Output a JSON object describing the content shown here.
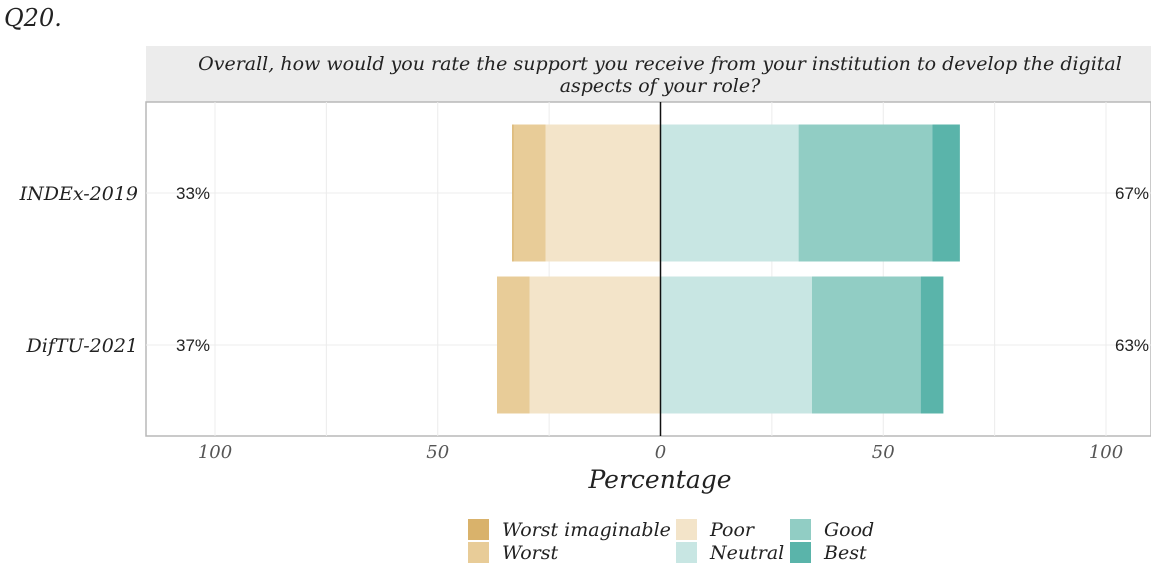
{
  "question_number": "Q20.",
  "chart_data": {
    "type": "bar",
    "orientation": "horizontal-diverging",
    "title_lines": [
      "Overall, how would you rate the support you receive from your institution to develop the digital",
      "aspects of your role?"
    ],
    "xlabel": "Percentage",
    "ylabel": "",
    "xlim": [
      -115,
      115
    ],
    "x_ticks": [
      -100,
      -50,
      0,
      50,
      100
    ],
    "x_tick_labels": [
      "100",
      "50",
      "0",
      "50",
      "100"
    ],
    "grid": true,
    "legend_position": "bottom",
    "categories": [
      "INDEx-2019",
      "DifTU-2021"
    ],
    "left_totals": [
      "33%",
      "37%"
    ],
    "right_totals": [
      "67%",
      "63%"
    ],
    "series": [
      {
        "name": "Worst imaginable",
        "color": "#d9b26b",
        "side": "negative",
        "values": [
          0.3,
          0
        ]
      },
      {
        "name": "Worst",
        "color": "#e8cc98",
        "side": "negative",
        "values": [
          7.2,
          7.3
        ]
      },
      {
        "name": "Poor",
        "color": "#f3e4c9",
        "side": "negative",
        "values": [
          25.8,
          29.4
        ]
      },
      {
        "name": "Neutral",
        "color": "#c8e6e3",
        "side": "positive",
        "values": [
          31,
          34
        ]
      },
      {
        "name": "Good",
        "color": "#91cdc4",
        "side": "positive",
        "values": [
          30,
          24.4
        ]
      },
      {
        "name": "Best",
        "color": "#5ab4aa",
        "side": "positive",
        "values": [
          6.2,
          5.1
        ]
      }
    ]
  }
}
